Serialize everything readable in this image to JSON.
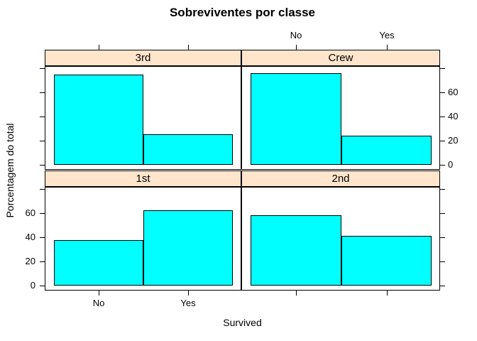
{
  "colors": {
    "bar_fill": "#00ffff",
    "bar_border": "#000000",
    "strip_background": "#ffe5cc",
    "strip_border": "#000000",
    "panel_border": "#000000",
    "tick_color": "#000000",
    "text_color": "#000000",
    "background": "#ffffff"
  },
  "chart_data": {
    "type": "bar",
    "subtype": "trellis-histogram-percent-of-total",
    "title": "Sobreviventes por classe",
    "xlabel": "Survived",
    "ylabel": "Porcentagem do total",
    "categories": [
      "No",
      "Yes"
    ],
    "yticks": [
      0,
      20,
      40,
      60,
      80
    ],
    "ytick_labels": [
      "0",
      "20",
      "40",
      "60",
      ""
    ],
    "ylim": [
      -4,
      82
    ],
    "grid": false,
    "legend": "none",
    "panels": [
      {
        "strip": "3rd",
        "grid_row": "top",
        "grid_col": "left",
        "values": [
          74.8,
          25.2
        ],
        "x_axis_side": "top",
        "x_axis_labeled": false,
        "y_axis_side": "left",
        "y_axis_labeled": false
      },
      {
        "strip": "Crew",
        "grid_row": "top",
        "grid_col": "right",
        "values": [
          76.0,
          24.0
        ],
        "x_axis_side": "top",
        "x_axis_labeled": true,
        "y_axis_side": "right",
        "y_axis_labeled": true
      },
      {
        "strip": "1st",
        "grid_row": "bottom",
        "grid_col": "left",
        "values": [
          37.5,
          62.5
        ],
        "x_axis_side": "bottom",
        "x_axis_labeled": true,
        "y_axis_side": "left",
        "y_axis_labeled": true
      },
      {
        "strip": "2nd",
        "grid_row": "bottom",
        "grid_col": "right",
        "values": [
          58.6,
          41.4
        ],
        "x_axis_side": "bottom",
        "x_axis_labeled": false,
        "y_axis_side": "right",
        "y_axis_labeled": false
      }
    ]
  }
}
